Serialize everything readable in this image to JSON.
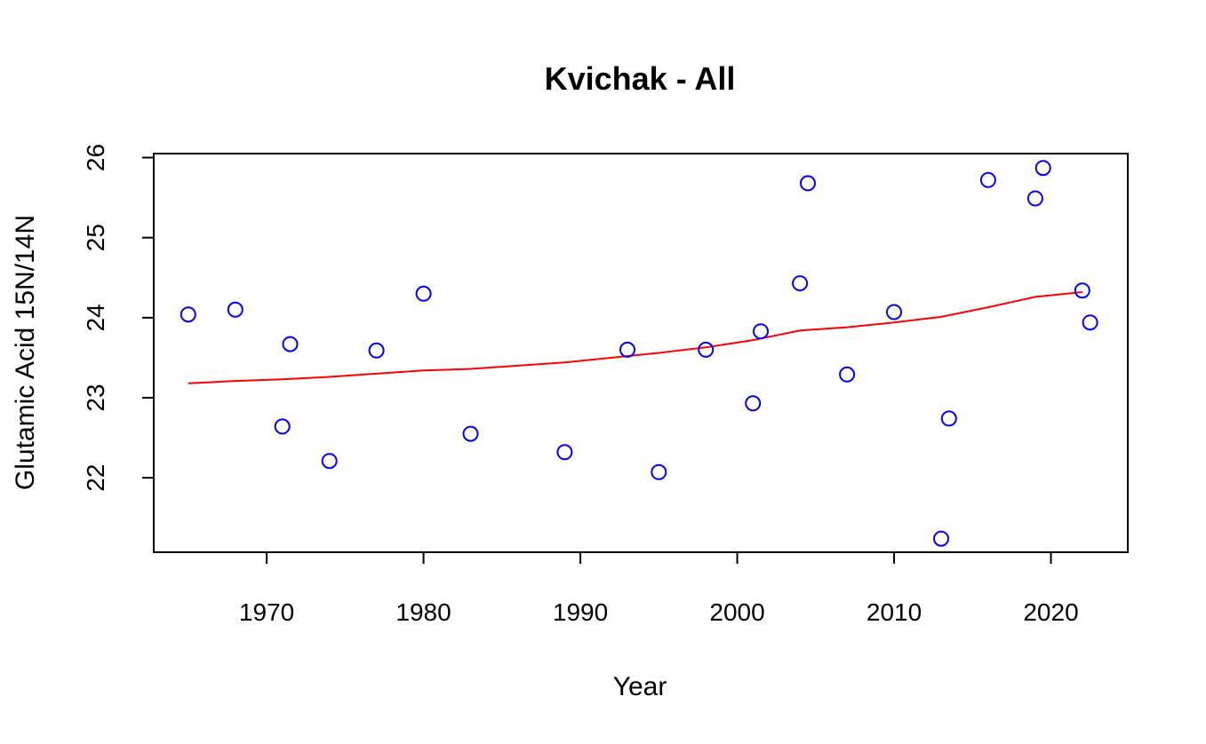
{
  "chart_data": {
    "type": "scatter",
    "title": "Kvichak - All",
    "xlabel": "Year",
    "ylabel": "Glutamic Acid 15N/14N",
    "xlim": [
      1962.8,
      2024.9
    ],
    "ylim": [
      21.07,
      26.05
    ],
    "x_ticks": [
      1970,
      1980,
      1990,
      2000,
      2010,
      2020
    ],
    "y_ticks": [
      22,
      23,
      24,
      25,
      26
    ],
    "grid": false,
    "legend": "none",
    "colors": {
      "points": "#0000ff",
      "trend": "#ff0000",
      "axes": "#000000"
    },
    "series": [
      {
        "type": "scatter",
        "marker": "open-circle",
        "points": [
          {
            "x": 1965.0,
            "y": 24.04
          },
          {
            "x": 1968.0,
            "y": 24.1
          },
          {
            "x": 1971.0,
            "y": 22.64
          },
          {
            "x": 1971.5,
            "y": 23.67
          },
          {
            "x": 1974.0,
            "y": 22.21
          },
          {
            "x": 1977.0,
            "y": 23.59
          },
          {
            "x": 1980.0,
            "y": 24.3
          },
          {
            "x": 1983.0,
            "y": 22.55
          },
          {
            "x": 1989.0,
            "y": 22.32
          },
          {
            "x": 1993.0,
            "y": 23.6
          },
          {
            "x": 1995.0,
            "y": 22.07
          },
          {
            "x": 1998.0,
            "y": 23.6
          },
          {
            "x": 2001.0,
            "y": 22.93
          },
          {
            "x": 2001.5,
            "y": 23.83
          },
          {
            "x": 2004.0,
            "y": 24.43
          },
          {
            "x": 2004.5,
            "y": 25.68
          },
          {
            "x": 2007.0,
            "y": 23.29
          },
          {
            "x": 2010.0,
            "y": 24.07
          },
          {
            "x": 2013.0,
            "y": 21.24
          },
          {
            "x": 2013.5,
            "y": 22.74
          },
          {
            "x": 2016.0,
            "y": 25.72
          },
          {
            "x": 2019.0,
            "y": 25.49
          },
          {
            "x": 2019.5,
            "y": 25.87
          },
          {
            "x": 2022.0,
            "y": 24.34
          },
          {
            "x": 2022.5,
            "y": 23.94
          }
        ]
      },
      {
        "type": "line",
        "style": "trend",
        "points": [
          {
            "x": 1965.0,
            "y": 23.18
          },
          {
            "x": 1968.0,
            "y": 23.21
          },
          {
            "x": 1971.0,
            "y": 23.23
          },
          {
            "x": 1974.0,
            "y": 23.26
          },
          {
            "x": 1977.0,
            "y": 23.3
          },
          {
            "x": 1980.0,
            "y": 23.34
          },
          {
            "x": 1983.0,
            "y": 23.36
          },
          {
            "x": 1986.0,
            "y": 23.4
          },
          {
            "x": 1989.0,
            "y": 23.44
          },
          {
            "x": 1992.0,
            "y": 23.5
          },
          {
            "x": 1995.0,
            "y": 23.56
          },
          {
            "x": 1998.0,
            "y": 23.63
          },
          {
            "x": 2001.0,
            "y": 23.72
          },
          {
            "x": 2004.0,
            "y": 23.84
          },
          {
            "x": 2007.0,
            "y": 23.88
          },
          {
            "x": 2010.0,
            "y": 23.94
          },
          {
            "x": 2013.0,
            "y": 24.01
          },
          {
            "x": 2016.0,
            "y": 24.13
          },
          {
            "x": 2019.0,
            "y": 24.26
          },
          {
            "x": 2022.0,
            "y": 24.32
          }
        ]
      }
    ]
  }
}
